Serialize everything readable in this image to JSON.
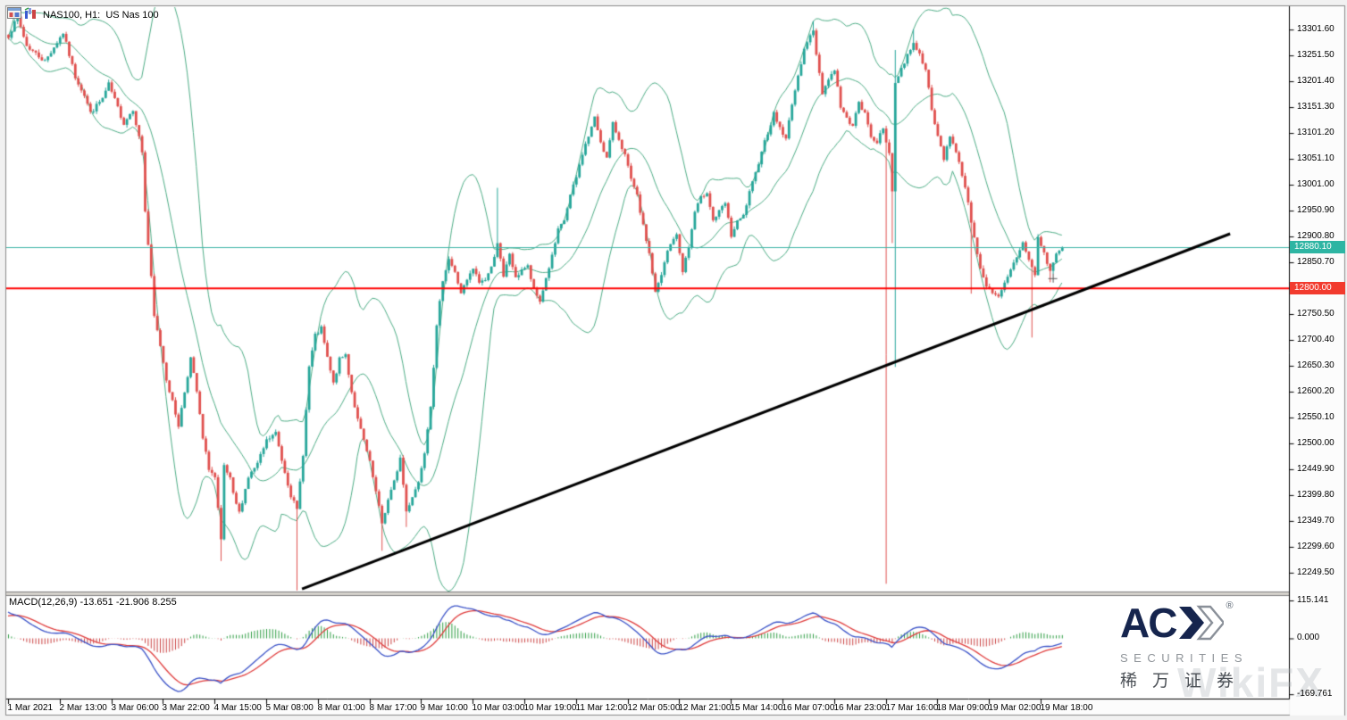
{
  "header": {
    "title": "NAS100, H1:  US Nas 100",
    "icons": [
      "chart-window-icon",
      "volume-bars-icon"
    ]
  },
  "chart_data": {
    "type": "candlestick",
    "symbol": "NAS100",
    "timeframe": "H1",
    "description": "US Nas 100",
    "bars": 348,
    "last_close": 12880.1,
    "price_axis": {
      "y_range": [
        13345,
        12213
      ],
      "ticks": [
        {
          "v": 13301.6,
          "t": "13301.60"
        },
        {
          "v": 13251.5,
          "t": "13251.50"
        },
        {
          "v": 13201.4,
          "t": "13201.40"
        },
        {
          "v": 13151.3,
          "t": "13151.30"
        },
        {
          "v": 13101.2,
          "t": "13101.20"
        },
        {
          "v": 13051.1,
          "t": "13051.10"
        },
        {
          "v": 13001.0,
          "t": "13001.00"
        },
        {
          "v": 12950.9,
          "t": "12950.90"
        },
        {
          "v": 12900.8,
          "t": "12900.80"
        },
        {
          "v": 12850.7,
          "t": "12850.70"
        },
        {
          "v": 12750.5,
          "t": "12750.50"
        },
        {
          "v": 12700.4,
          "t": "12700.40"
        },
        {
          "v": 12650.3,
          "t": "12650.30"
        },
        {
          "v": 12600.2,
          "t": "12600.20"
        },
        {
          "v": 12550.1,
          "t": "12550.10"
        },
        {
          "v": 12500.0,
          "t": "12500.00"
        },
        {
          "v": 12449.9,
          "t": "12449.90"
        },
        {
          "v": 12399.8,
          "t": "12399.80"
        },
        {
          "v": 12349.7,
          "t": "12349.70"
        },
        {
          "v": 12299.6,
          "t": "12299.60"
        },
        {
          "v": 12249.5,
          "t": "12249.50"
        }
      ]
    },
    "time_axis": {
      "bars_per_label": 17,
      "labels": [
        "1 Mar 2021",
        "2 Mar 13:00",
        "3 Mar 06:00",
        "3 Mar 22:00",
        "4 Mar 15:00",
        "5 Mar 08:00",
        "8 Mar 01:00",
        "8 Mar 17:00",
        "9 Mar 10:00",
        "10 Mar 03:00",
        "10 Mar 19:00",
        "11 Mar 12:00",
        "12 Mar 05:00",
        "12 Mar 21:00",
        "15 Mar 14:00",
        "16 Mar 07:00",
        "16 Mar 23:00",
        "17 Mar 16:00",
        "18 Mar 09:00",
        "19 Mar 02:00",
        "19 Mar 18:00"
      ]
    },
    "anchors": [
      [
        0,
        13290
      ],
      [
        3,
        13325
      ],
      [
        6,
        13270
      ],
      [
        9,
        13255
      ],
      [
        12,
        13240
      ],
      [
        15,
        13268
      ],
      [
        18,
        13295
      ],
      [
        22,
        13210
      ],
      [
        25,
        13175
      ],
      [
        27,
        13140
      ],
      [
        31,
        13168
      ],
      [
        33,
        13195
      ],
      [
        36,
        13150
      ],
      [
        38,
        13120
      ],
      [
        41,
        13148
      ],
      [
        44,
        13065
      ],
      [
        45,
        12950
      ],
      [
        47,
        12820
      ],
      [
        48,
        12745
      ],
      [
        50,
        12690
      ],
      [
        52,
        12625
      ],
      [
        54,
        12580
      ],
      [
        56,
        12535
      ],
      [
        58,
        12600
      ],
      [
        60,
        12665
      ],
      [
        62,
        12600
      ],
      [
        64,
        12508
      ],
      [
        66,
        12452
      ],
      [
        68,
        12433
      ],
      [
        70,
        12310
      ],
      [
        71,
        12455
      ],
      [
        73,
        12430
      ],
      [
        74,
        12400
      ],
      [
        76,
        12365
      ],
      [
        79,
        12435
      ],
      [
        82,
        12460
      ],
      [
        85,
        12505
      ],
      [
        88,
        12520
      ],
      [
        90,
        12468
      ],
      [
        93,
        12400
      ],
      [
        95,
        12370
      ],
      [
        97,
        12480
      ],
      [
        99,
        12648
      ],
      [
        101,
        12708
      ],
      [
        103,
        12722
      ],
      [
        105,
        12665
      ],
      [
        107,
        12615
      ],
      [
        109,
        12662
      ],
      [
        111,
        12672
      ],
      [
        113,
        12600
      ],
      [
        115,
        12545
      ],
      [
        117,
        12505
      ],
      [
        119,
        12462
      ],
      [
        121,
        12405
      ],
      [
        123,
        12345
      ],
      [
        125,
        12390
      ],
      [
        127,
        12425
      ],
      [
        129,
        12472
      ],
      [
        131,
        12368
      ],
      [
        133,
        12398
      ],
      [
        135,
        12425
      ],
      [
        137,
        12485
      ],
      [
        139,
        12575
      ],
      [
        141,
        12725
      ],
      [
        143,
        12818
      ],
      [
        145,
        12858
      ],
      [
        147,
        12830
      ],
      [
        149,
        12792
      ],
      [
        151,
        12815
      ],
      [
        153,
        12838
      ],
      [
        155,
        12812
      ],
      [
        157,
        12818
      ],
      [
        159,
        12840
      ],
      [
        161,
        12890
      ],
      [
        163,
        12820
      ],
      [
        165,
        12868
      ],
      [
        167,
        12818
      ],
      [
        169,
        12838
      ],
      [
        171,
        12842
      ],
      [
        173,
        12796
      ],
      [
        175,
        12775
      ],
      [
        177,
        12820
      ],
      [
        179,
        12862
      ],
      [
        181,
        12912
      ],
      [
        183,
        12932
      ],
      [
        185,
        12980
      ],
      [
        187,
        13015
      ],
      [
        189,
        13062
      ],
      [
        191,
        13095
      ],
      [
        193,
        13130
      ],
      [
        195,
        13085
      ],
      [
        197,
        13052
      ],
      [
        199,
        13118
      ],
      [
        201,
        13090
      ],
      [
        203,
        13058
      ],
      [
        205,
        13010
      ],
      [
        207,
        12978
      ],
      [
        209,
        12920
      ],
      [
        211,
        12868
      ],
      [
        213,
        12792
      ],
      [
        215,
        12825
      ],
      [
        217,
        12872
      ],
      [
        219,
        12898
      ],
      [
        220,
        12902
      ],
      [
        222,
        12835
      ],
      [
        224,
        12880
      ],
      [
        226,
        12948
      ],
      [
        228,
        12975
      ],
      [
        230,
        12988
      ],
      [
        232,
        12932
      ],
      [
        234,
        12948
      ],
      [
        236,
        12965
      ],
      [
        238,
        12902
      ],
      [
        240,
        12928
      ],
      [
        242,
        12940
      ],
      [
        244,
        12985
      ],
      [
        246,
        13022
      ],
      [
        248,
        13068
      ],
      [
        250,
        13102
      ],
      [
        252,
        13138
      ],
      [
        254,
        13112
      ],
      [
        256,
        13088
      ],
      [
        258,
        13160
      ],
      [
        260,
        13208
      ],
      [
        262,
        13268
      ],
      [
        264,
        13288
      ],
      [
        265,
        13298
      ],
      [
        266,
        13255
      ],
      [
        268,
        13180
      ],
      [
        270,
        13205
      ],
      [
        272,
        13225
      ],
      [
        274,
        13152
      ],
      [
        276,
        13128
      ],
      [
        278,
        13118
      ],
      [
        280,
        13158
      ],
      [
        282,
        13138
      ],
      [
        284,
        13095
      ],
      [
        286,
        13085
      ],
      [
        288,
        13108
      ],
      [
        290,
        13062
      ],
      [
        291,
        12992
      ],
      [
        292,
        13198
      ],
      [
        294,
        13225
      ],
      [
        296,
        13252
      ],
      [
        298,
        13278
      ],
      [
        300,
        13252
      ],
      [
        302,
        13228
      ],
      [
        304,
        13142
      ],
      [
        306,
        13095
      ],
      [
        308,
        13052
      ],
      [
        310,
        13098
      ],
      [
        312,
        13062
      ],
      [
        314,
        13022
      ],
      [
        316,
        12968
      ],
      [
        318,
        12895
      ],
      [
        320,
        12842
      ],
      [
        322,
        12805
      ],
      [
        324,
        12788
      ],
      [
        326,
        12782
      ],
      [
        328,
        12808
      ],
      [
        330,
        12835
      ],
      [
        332,
        12862
      ],
      [
        334,
        12888
      ],
      [
        336,
        12858
      ],
      [
        338,
        12825
      ],
      [
        339,
        12898
      ],
      [
        341,
        12868
      ],
      [
        343,
        12832
      ],
      [
        345,
        12868
      ],
      [
        347,
        12880
      ]
    ],
    "wicks": [
      {
        "b": 70,
        "lo": 12272
      },
      {
        "b": 95,
        "lo": 12215
      },
      {
        "b": 123,
        "lo": 12292
      },
      {
        "b": 131,
        "lo": 12338
      },
      {
        "b": 161,
        "hi": 12995
      },
      {
        "b": 193,
        "hi": 13132
      },
      {
        "b": 265,
        "hi": 13318
      },
      {
        "b": 289,
        "lo": 12228
      },
      {
        "b": 291,
        "lo": 12888
      },
      {
        "b": 292,
        "lo": 12648,
        "hi": 13262
      },
      {
        "b": 298,
        "hi": 13302
      },
      {
        "b": 317,
        "lo": 12790
      },
      {
        "b": 337,
        "lo": 12705
      },
      {
        "b": 343,
        "lo": 12812
      }
    ],
    "indicators": {
      "bollinger": {
        "period": 20,
        "deviation": 2
      },
      "macd": {
        "label": "MACD(12,26,9) -13.651 -21.906 8.255",
        "fast": 12,
        "slow": 26,
        "signal": 9,
        "values": {
          "macd": -13.651,
          "signal": -21.906,
          "histogram": 8.255
        },
        "init_spread": 80,
        "init_signal": 68,
        "axis_range": [
          128.7,
          -182.9
        ],
        "ticks": [
          {
            "v": 115.141,
            "t": "115.141"
          },
          {
            "v": 0,
            "t": "0.000"
          },
          {
            "v": -169.761,
            "t": "-169.761"
          }
        ]
      }
    },
    "objects": {
      "hline_current": {
        "price": 12880.1,
        "label": "12880.10"
      },
      "hline_level": {
        "price": 12800.0,
        "label": "12800.00"
      },
      "trendline": {
        "from_bar": 96.8,
        "from_price": 12218,
        "to_bar": 402.4,
        "to_price": 12906
      },
      "cross_marker": {
        "bar": 344,
        "price": 12820
      }
    }
  },
  "colors": {
    "candle_up": "#26a69a",
    "candle_down": "#e0504e",
    "bollinger": "#4fae87",
    "macd_line": "#3a52c8",
    "signal_line": "#e03c3c",
    "hist_up": "#2f9e44",
    "hist_down": "#cc4444",
    "hline_current": "#3eb5a8",
    "hline_level": "#ff0000",
    "tag_current_bg": "#2eb5a3",
    "tag_level_bg": "#f23b2e",
    "trendline": "#000000",
    "frame": "#8a8a8a",
    "pane_bg": "#ffffff",
    "separator_fill": "#d6d3cd"
  },
  "logo": {
    "brand_left": "AC",
    "reg": "®",
    "subtitle": "SECURITIES",
    "chinese": "稀万证券"
  },
  "watermark": {
    "text": "WikiFX"
  }
}
